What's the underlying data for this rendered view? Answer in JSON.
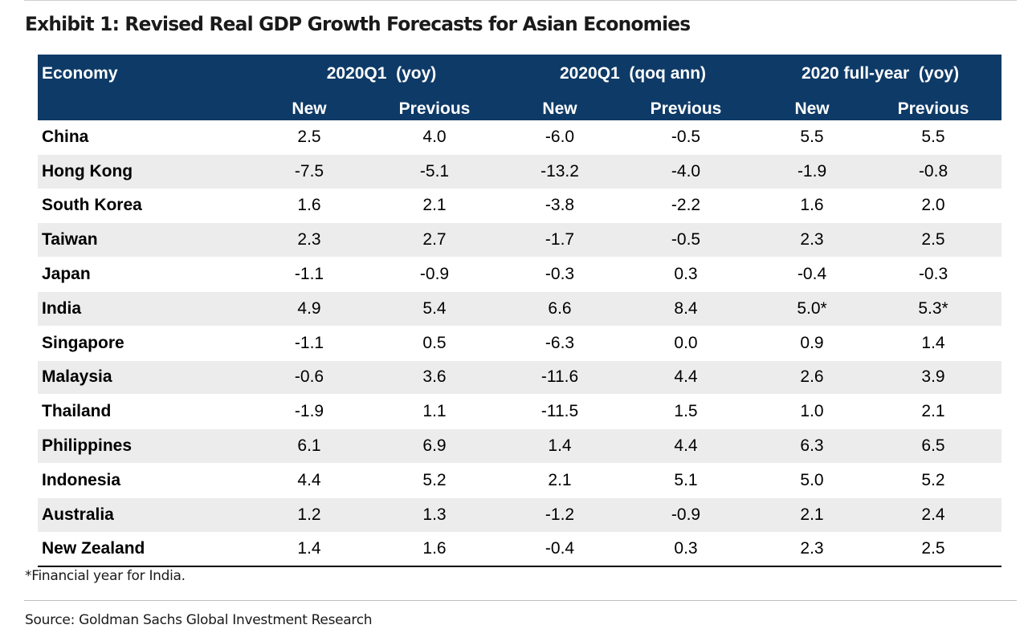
{
  "title": "Exhibit 1: Revised Real GDP Growth Forecasts for Asian Economies",
  "colors": {
    "header_bg": "#0e3a67",
    "header_text": "#ffffff",
    "band_row": "#ececec"
  },
  "table": {
    "economy_header": "Economy",
    "groups": [
      "2020Q1  (yoy)",
      "2020Q1  (qoq ann)",
      "2020 full-year  (yoy)"
    ],
    "subheaders": [
      "New",
      "Previous",
      "New",
      "Previous",
      "New",
      "Previous"
    ],
    "rows": [
      {
        "economy": "China",
        "values": [
          "2.5",
          "4.0",
          "-6.0",
          "-0.5",
          "5.5",
          "5.5"
        ]
      },
      {
        "economy": "Hong Kong",
        "values": [
          "-7.5",
          "-5.1",
          "-13.2",
          "-4.0",
          "-1.9",
          "-0.8"
        ]
      },
      {
        "economy": "South Korea",
        "values": [
          "1.6",
          "2.1",
          "-3.8",
          "-2.2",
          "1.6",
          "2.0"
        ]
      },
      {
        "economy": "Taiwan",
        "values": [
          "2.3",
          "2.7",
          "-1.7",
          "-0.5",
          "2.3",
          "2.5"
        ]
      },
      {
        "economy": "Japan",
        "values": [
          "-1.1",
          "-0.9",
          "-0.3",
          "0.3",
          "-0.4",
          "-0.3"
        ]
      },
      {
        "economy": "India",
        "values": [
          "4.9",
          "5.4",
          "6.6",
          "8.4",
          "5.0*",
          "5.3*"
        ]
      },
      {
        "economy": "Singapore",
        "values": [
          "-1.1",
          "0.5",
          "-6.3",
          "0.0",
          "0.9",
          "1.4"
        ]
      },
      {
        "economy": "Malaysia",
        "values": [
          "-0.6",
          "3.6",
          "-11.6",
          "4.4",
          "2.6",
          "3.9"
        ]
      },
      {
        "economy": "Thailand",
        "values": [
          "-1.9",
          "1.1",
          "-11.5",
          "1.5",
          "1.0",
          "2.1"
        ]
      },
      {
        "economy": "Philippines",
        "values": [
          "6.1",
          "6.9",
          "1.4",
          "4.4",
          "6.3",
          "6.5"
        ]
      },
      {
        "economy": "Indonesia",
        "values": [
          "4.4",
          "5.2",
          "2.1",
          "5.1",
          "5.0",
          "5.2"
        ]
      },
      {
        "economy": "Australia",
        "values": [
          "1.2",
          "1.3",
          "-1.2",
          "-0.9",
          "2.1",
          "2.4"
        ]
      },
      {
        "economy": "New Zealand",
        "values": [
          "1.4",
          "1.6",
          "-0.4",
          "0.3",
          "2.3",
          "2.5"
        ]
      }
    ]
  },
  "footnote": "*Financial year for India.",
  "source": "Source: Goldman Sachs Global Investment Research"
}
